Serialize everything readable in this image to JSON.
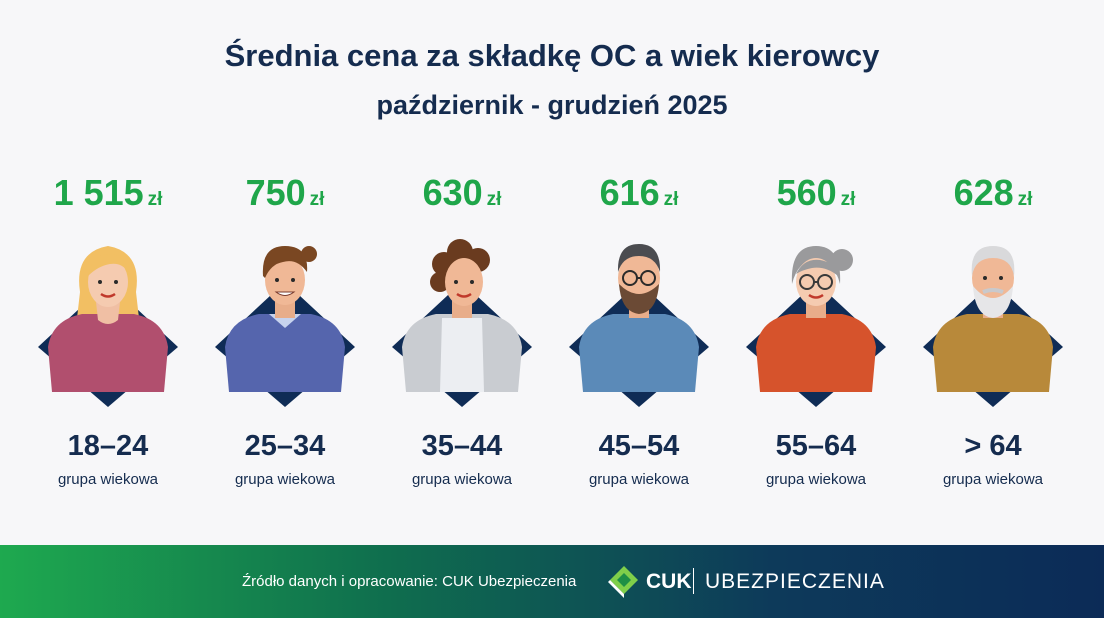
{
  "chart_data": {
    "type": "table",
    "title": "Średnia cena za składkę OC a wiek kierowcy",
    "subtitle": "październik - grudzień 2025",
    "categories": [
      "18–24",
      "25–34",
      "35–44",
      "45–54",
      "55–64",
      "> 64"
    ],
    "values": [
      1515,
      750,
      630,
      616,
      560,
      628
    ],
    "value_labels": [
      "1 515",
      "750",
      "630",
      "616",
      "560",
      "628"
    ],
    "unit": "zł",
    "category_caption": "grupa wiekowa"
  },
  "colors": {
    "title": "#152c4f",
    "price": "#1fa64a",
    "diamond": "#0f2c56",
    "shirts": [
      "#b14f6e",
      "#5565ad",
      "#c9ccd1",
      "#5b8ab8",
      "#d6532c",
      "#b8893a"
    ]
  },
  "avatars": [
    "young-woman-icon",
    "young-man-icon",
    "curly-woman-icon",
    "bearded-man-icon",
    "grey-haired-woman-icon",
    "senior-man-icon"
  ],
  "footer": {
    "source": "Źródło danych i opracowanie: CUK Ubezpieczenia",
    "brand": "CUK",
    "brand_sub": "UBEZPIECZENIA"
  }
}
